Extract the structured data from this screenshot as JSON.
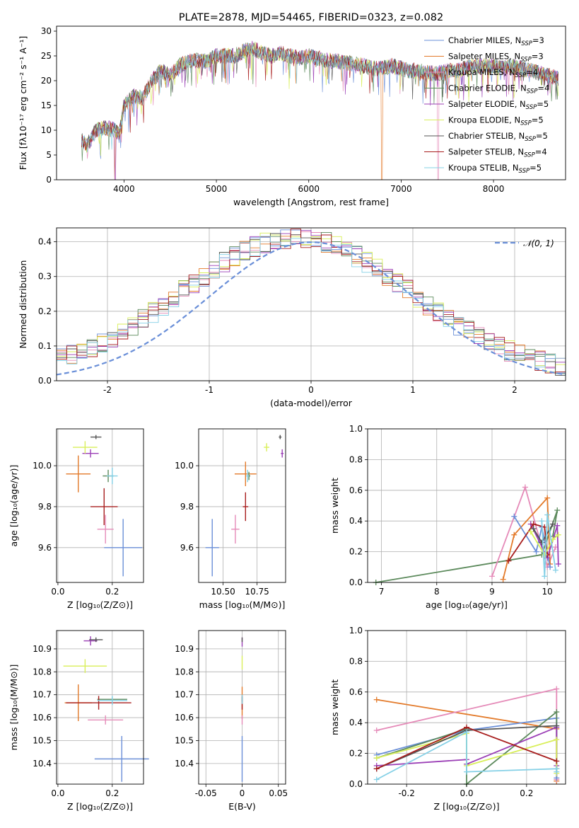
{
  "colors": {
    "Chabrier MILES": "#6a8fd8",
    "Salpeter MILES": "#e37a2a",
    "Kroupa MILES": "#e58ab8",
    "Chabrier ELODIE": "#5c8a5c",
    "Salpeter ELODIE": "#9b3fb6",
    "Kroupa ELODIE": "#d9ef5a",
    "Chabrier STELIB": "#555555",
    "Salpeter STELIB": "#a81e1e",
    "Kroupa STELIB": "#84d0e6"
  },
  "chart_data": [
    {
      "id": "spectrum",
      "type": "line",
      "title": "PLATE=2878, MJD=54465, FIBERID=0323, z=0.082",
      "xlabel": "wavelength [Angstrom, rest frame]",
      "ylabel": "Flux [fλ10⁻¹⁷ erg cm⁻² s⁻¹ A⁻¹]",
      "xlim": [
        3270,
        8780
      ],
      "ylim": [
        0,
        31
      ],
      "xticks": [
        4000,
        5000,
        6000,
        7000,
        8000
      ],
      "yticks": [
        0,
        5,
        10,
        15,
        20,
        25,
        30
      ],
      "legend": "top-right",
      "series": [
        {
          "name": "Chabrier MILES, N",
          "sub": "SSP",
          "suffix": "=3"
        },
        {
          "name": "Salpeter MILES, N",
          "sub": "SSP",
          "suffix": "=3"
        },
        {
          "name": "Kroupa MILES, N",
          "sub": "SSP",
          "suffix": "=4"
        },
        {
          "name": "Chabrier ELODIE, N",
          "sub": "SSP",
          "suffix": "=4"
        },
        {
          "name": "Salpeter ELODIE, N",
          "sub": "SSP",
          "suffix": "=5"
        },
        {
          "name": "Kroupa ELODIE, N",
          "sub": "SSP",
          "suffix": "=5"
        },
        {
          "name": "Chabrier STELIB, N",
          "sub": "SSP",
          "suffix": "=5"
        },
        {
          "name": "Salpeter STELIB, N",
          "sub": "SSP",
          "suffix": "=4"
        },
        {
          "name": "Kroupa STELIB, N",
          "sub": "SSP",
          "suffix": "=5"
        }
      ],
      "envelope": {
        "x": [
          3540,
          3600,
          3700,
          3800,
          3900,
          3950,
          4000,
          4100,
          4200,
          4300,
          4400,
          4500,
          4600,
          4700,
          4800,
          4900,
          5000,
          5100,
          5200,
          5300,
          5400,
          5500,
          5600,
          5700,
          5800,
          5900,
          6000,
          6100,
          6200,
          6300,
          6400,
          6500,
          6600,
          6700,
          6800,
          6900,
          7000,
          7100,
          7200,
          7300,
          7400,
          7500,
          7600,
          7700,
          7800,
          7900,
          8000,
          8100,
          8200,
          8300,
          8400,
          8500,
          8600,
          8700
        ],
        "y": [
          8,
          7,
          10,
          10.5,
          10,
          9,
          15,
          17,
          16.5,
          20,
          22,
          21,
          23,
          24,
          24,
          24,
          25,
          25,
          25,
          26,
          26.5,
          25.5,
          25,
          25.5,
          25,
          24.5,
          25,
          24.5,
          24,
          24,
          23.5,
          23.5,
          23,
          22.5,
          22.5,
          23,
          22.5,
          22,
          22,
          21.5,
          21.5,
          22,
          22,
          22.5,
          23,
          23,
          23,
          22.5,
          23,
          22.5,
          22,
          21.5,
          21,
          20.5
        ]
      },
      "dropouts": [
        3900,
        3905,
        6790,
        7400
      ]
    },
    {
      "id": "residuals",
      "type": "step",
      "xlabel": "(data-model)/error",
      "ylabel": "Normed distribution",
      "xlim": [
        -2.5,
        2.5
      ],
      "ylim": [
        0,
        0.44
      ],
      "xticks": [
        -2,
        -1,
        0,
        1,
        2
      ],
      "yticks": [
        0.0,
        0.1,
        0.2,
        0.3,
        0.4
      ],
      "grid": true,
      "legend": "top-right",
      "reference": {
        "name": "𝒩(0, 1)",
        "mu": 0,
        "sigma": 1
      },
      "bin_width": 0.1,
      "bin_start": -2.5,
      "bins": 50
    },
    {
      "id": "age_vs_Z",
      "type": "errorbar",
      "xlabel": "Z [log₁₀(Z/Z⊙)]",
      "ylabel": "age  [log₁₀(age/yr)]",
      "xlim": [
        -0.005,
        0.315
      ],
      "ylim": [
        9.43,
        10.18
      ],
      "xticks": [
        0.0,
        0.2
      ],
      "yticks": [
        9.6,
        9.8,
        10.0
      ],
      "grid": true,
      "points": [
        {
          "model": "Chabrier MILES",
          "x": 0.24,
          "y": 9.6,
          "xerr": 0.07,
          "yerr": 0.14
        },
        {
          "model": "Salpeter MILES",
          "x": 0.075,
          "y": 9.96,
          "xerr": 0.045,
          "yerr": 0.09
        },
        {
          "model": "Kroupa MILES",
          "x": 0.175,
          "y": 9.69,
          "xerr": 0.03,
          "yerr": 0.07
        },
        {
          "model": "Chabrier ELODIE",
          "x": 0.185,
          "y": 9.95,
          "xerr": 0.02,
          "yerr": 0.03
        },
        {
          "model": "Salpeter ELODIE",
          "x": 0.12,
          "y": 10.06,
          "xerr": 0.03,
          "yerr": 0.02
        },
        {
          "model": "Kroupa ELODIE",
          "x": 0.1,
          "y": 10.09,
          "xerr": 0.045,
          "yerr": 0.03
        },
        {
          "model": "Chabrier STELIB",
          "x": 0.14,
          "y": 10.14,
          "xerr": 0.02,
          "yerr": 0.01
        },
        {
          "model": "Salpeter STELIB",
          "x": 0.17,
          "y": 9.8,
          "xerr": 0.05,
          "yerr": 0.09
        },
        {
          "model": "Kroupa STELIB",
          "x": 0.2,
          "y": 9.95,
          "xerr": 0.02,
          "yerr": 0.04
        }
      ]
    },
    {
      "id": "age_vs_mass",
      "type": "errorbar",
      "xlabel": "mass [log₁₀(M/M⊙)]",
      "ylabel": "",
      "xlim": [
        10.32,
        10.96
      ],
      "ylim": [
        9.43,
        10.18
      ],
      "xticks": [
        10.5,
        10.75
      ],
      "yticks": [
        9.6,
        9.8,
        10.0
      ],
      "grid": true,
      "points": [
        {
          "model": "Chabrier MILES",
          "x": 10.42,
          "y": 9.6,
          "xerr": 0.05,
          "yerr": 0.14
        },
        {
          "model": "Salpeter MILES",
          "x": 10.665,
          "y": 9.96,
          "xerr": 0.08,
          "yerr": 0.06
        },
        {
          "model": "Kroupa MILES",
          "x": 10.59,
          "y": 9.69,
          "xerr": 0.03,
          "yerr": 0.07
        },
        {
          "model": "Chabrier ELODIE",
          "x": 10.69,
          "y": 9.95,
          "xerr": 0.01,
          "yerr": 0.02
        },
        {
          "model": "Salpeter ELODIE",
          "x": 10.935,
          "y": 10.06,
          "xerr": 0.01,
          "yerr": 0.02
        },
        {
          "model": "Kroupa ELODIE",
          "x": 10.82,
          "y": 10.09,
          "xerr": 0.02,
          "yerr": 0.02
        },
        {
          "model": "Chabrier STELIB",
          "x": 10.92,
          "y": 10.14,
          "xerr": 0.01,
          "yerr": 0.01
        },
        {
          "model": "Salpeter STELIB",
          "x": 10.665,
          "y": 9.8,
          "xerr": 0.02,
          "yerr": 0.07
        },
        {
          "model": "Kroupa STELIB",
          "x": 10.68,
          "y": 9.95,
          "xerr": 0.01,
          "yerr": 0.03
        }
      ]
    },
    {
      "id": "weight_vs_age",
      "type": "line",
      "xlabel": "age  [log₁₀(age/yr)]",
      "ylabel": "mass weight",
      "xlim": [
        6.75,
        10.33
      ],
      "ylim": [
        0,
        1
      ],
      "xticks": [
        7,
        8,
        9,
        10
      ],
      "yticks": [
        0.0,
        0.2,
        0.4,
        0.6,
        0.8,
        1.0
      ],
      "grid": true,
      "series": [
        {
          "model": "Chabrier ELODIE",
          "points": [
            [
              6.9,
              0.0
            ],
            [
              9.9,
              0.18
            ],
            [
              10.18,
              0.47
            ],
            [
              10.1,
              0.3
            ]
          ]
        },
        {
          "model": "Kroupa MILES",
          "points": [
            [
              9.0,
              0.04
            ],
            [
              9.6,
              0.62
            ],
            [
              10.0,
              0.1
            ],
            [
              10.15,
              0.23
            ]
          ]
        },
        {
          "model": "Salpeter MILES",
          "points": [
            [
              9.2,
              0.02
            ],
            [
              9.4,
              0.31
            ],
            [
              10.0,
              0.55
            ],
            [
              10.05,
              0.12
            ]
          ]
        },
        {
          "model": "Chabrier MILES",
          "points": [
            [
              9.4,
              0.43
            ],
            [
              9.8,
              0.2
            ],
            [
              9.9,
              0.36
            ],
            [
              10.05,
              0.1
            ]
          ]
        },
        {
          "model": "Salpeter ELODIE",
          "points": [
            [
              9.7,
              0.38
            ],
            [
              10.0,
              0.16
            ],
            [
              10.18,
              0.37
            ],
            [
              10.2,
              0.12
            ]
          ]
        },
        {
          "model": "Salpeter STELIB",
          "points": [
            [
              9.3,
              0.14
            ],
            [
              9.75,
              0.38
            ],
            [
              9.95,
              0.36
            ],
            [
              10.0,
              0.18
            ]
          ]
        },
        {
          "model": "Kroupa ELODIE",
          "points": [
            [
              9.7,
              0.33
            ],
            [
              9.95,
              0.18
            ],
            [
              10.1,
              0.28
            ],
            [
              10.2,
              0.31
            ]
          ]
        },
        {
          "model": "Chabrier STELIB",
          "points": [
            [
              9.75,
              0.35
            ],
            [
              9.9,
              0.26
            ],
            [
              10.1,
              0.38
            ]
          ]
        },
        {
          "model": "Kroupa STELIB",
          "points": [
            [
              9.9,
              0.4
            ],
            [
              9.95,
              0.04
            ],
            [
              10.0,
              0.44
            ],
            [
              10.15,
              0.08
            ]
          ]
        }
      ]
    },
    {
      "id": "mass_vs_Z",
      "type": "errorbar",
      "xlabel": "Z [log₁₀(Z/Z⊙)]",
      "ylabel": "mass [log₁₀(M/M⊙)]",
      "xlim": [
        -0.005,
        0.315
      ],
      "ylim": [
        10.31,
        10.98
      ],
      "xticks": [
        0.0,
        0.2
      ],
      "yticks": [
        10.4,
        10.5,
        10.6,
        10.7,
        10.8,
        10.9
      ],
      "grid": true,
      "points": [
        {
          "model": "Chabrier MILES",
          "x": 0.235,
          "y": 10.42,
          "xerr": 0.1,
          "yerr": 0.1
        },
        {
          "model": "Salpeter MILES",
          "x": 0.075,
          "y": 10.665,
          "xerr": 0.05,
          "yerr": 0.08
        },
        {
          "model": "Kroupa MILES",
          "x": 0.175,
          "y": 10.59,
          "xerr": 0.065,
          "yerr": 0.02
        },
        {
          "model": "Chabrier ELODIE",
          "x": 0.2,
          "y": 10.68,
          "xerr": 0.055,
          "yerr": 0.01
        },
        {
          "model": "Salpeter ELODIE",
          "x": 0.12,
          "y": 10.935,
          "xerr": 0.025,
          "yerr": 0.02
        },
        {
          "model": "Kroupa ELODIE",
          "x": 0.1,
          "y": 10.825,
          "xerr": 0.08,
          "yerr": 0.03
        },
        {
          "model": "Chabrier STELIB",
          "x": 0.14,
          "y": 10.94,
          "xerr": 0.025,
          "yerr": 0.01
        },
        {
          "model": "Salpeter STELIB",
          "x": 0.15,
          "y": 10.665,
          "xerr": 0.12,
          "yerr": 0.03
        },
        {
          "model": "Kroupa STELIB",
          "x": 0.2,
          "y": 10.675,
          "xerr": 0.055,
          "yerr": 0.02
        }
      ]
    },
    {
      "id": "mass_vs_EBV",
      "type": "errorbar",
      "xlabel": "E(B-V)",
      "ylabel": "",
      "xlim": [
        -0.06,
        0.06
      ],
      "ylim": [
        10.31,
        10.98
      ],
      "xticks": [
        -0.05,
        0.0,
        0.05
      ],
      "yticks": [
        10.4,
        10.5,
        10.6,
        10.7,
        10.8,
        10.9
      ],
      "grid": true,
      "points": [
        {
          "model": "Chabrier MILES",
          "x": 0.0,
          "y": 10.42,
          "xerr": 0,
          "yerr": 0.1
        },
        {
          "model": "Salpeter MILES",
          "x": 0.0,
          "y": 10.665,
          "xerr": 0,
          "yerr": 0.07
        },
        {
          "model": "Kroupa MILES",
          "x": 0.0,
          "y": 10.59,
          "xerr": 0,
          "yerr": 0.02
        },
        {
          "model": "Chabrier ELODIE",
          "x": 0.0,
          "y": 10.68,
          "xerr": 0,
          "yerr": 0.01
        },
        {
          "model": "Salpeter ELODIE",
          "x": 0.0,
          "y": 10.93,
          "xerr": 0,
          "yerr": 0.02
        },
        {
          "model": "Kroupa ELODIE",
          "x": 0.0,
          "y": 10.84,
          "xerr": 0,
          "yerr": 0.03
        },
        {
          "model": "Chabrier STELIB",
          "x": 0.0,
          "y": 10.94,
          "xerr": 0,
          "yerr": 0.01
        },
        {
          "model": "Salpeter STELIB",
          "x": 0.0,
          "y": 10.665,
          "xerr": 0,
          "yerr": 0.03
        },
        {
          "model": "Kroupa STELIB",
          "x": 0.0,
          "y": 10.68,
          "xerr": 0,
          "yerr": 0.02
        }
      ]
    },
    {
      "id": "weight_vs_Z",
      "type": "line",
      "xlabel": "Z [log₁₀(Z/Z⊙)]",
      "ylabel": "mass weight",
      "xlim": [
        -0.33,
        0.33
      ],
      "ylim": [
        0,
        1
      ],
      "xticks": [
        -0.2,
        0.0,
        0.2
      ],
      "yticks": [
        0.0,
        0.2,
        0.4,
        0.6,
        0.8,
        1.0
      ],
      "grid": true,
      "series": [
        {
          "model": "Salpeter MILES",
          "points": [
            [
              -0.3,
              0.55
            ],
            [
              0.3,
              0.36
            ],
            [
              0.3,
              0.02
            ]
          ]
        },
        {
          "model": "Kroupa MILES",
          "points": [
            [
              -0.3,
              0.35
            ],
            [
              0.3,
              0.62
            ],
            [
              0.3,
              0.03
            ]
          ]
        },
        {
          "model": "Chabrier MILES",
          "points": [
            [
              -0.3,
              0.19
            ],
            [
              0.0,
              0.35
            ],
            [
              0.3,
              0.43
            ],
            [
              0.3,
              0.04
            ]
          ]
        },
        {
          "model": "Chabrier ELODIE",
          "points": [
            [
              -0.3,
              0.17
            ],
            [
              0.0,
              0.36
            ],
            [
              0.0,
              0.0
            ],
            [
              0.3,
              0.47
            ],
            [
              0.3,
              0.1
            ]
          ]
        },
        {
          "model": "Salpeter ELODIE",
          "points": [
            [
              -0.3,
              0.12
            ],
            [
              0.0,
              0.16
            ],
            [
              0.0,
              0.13
            ],
            [
              0.3,
              0.37
            ],
            [
              0.3,
              0.12
            ]
          ]
        },
        {
          "model": "Kroupa ELODIE",
          "points": [
            [
              -0.3,
              0.17
            ],
            [
              0.0,
              0.33
            ],
            [
              0.0,
              0.12
            ],
            [
              0.3,
              0.29
            ],
            [
              0.3,
              0.07
            ]
          ]
        },
        {
          "model": "Chabrier STELIB",
          "points": [
            [
              -0.3,
              0.1
            ],
            [
              0.0,
              0.35
            ],
            [
              0.3,
              0.38
            ]
          ]
        },
        {
          "model": "Salpeter STELIB",
          "points": [
            [
              -0.3,
              0.1
            ],
            [
              0.0,
              0.37
            ],
            [
              0.3,
              0.15
            ]
          ]
        },
        {
          "model": "Kroupa STELIB",
          "points": [
            [
              -0.3,
              0.03
            ],
            [
              0.0,
              0.34
            ],
            [
              0.0,
              0.08
            ],
            [
              0.3,
              0.1
            ],
            [
              0.3,
              0.08
            ]
          ]
        }
      ]
    }
  ]
}
